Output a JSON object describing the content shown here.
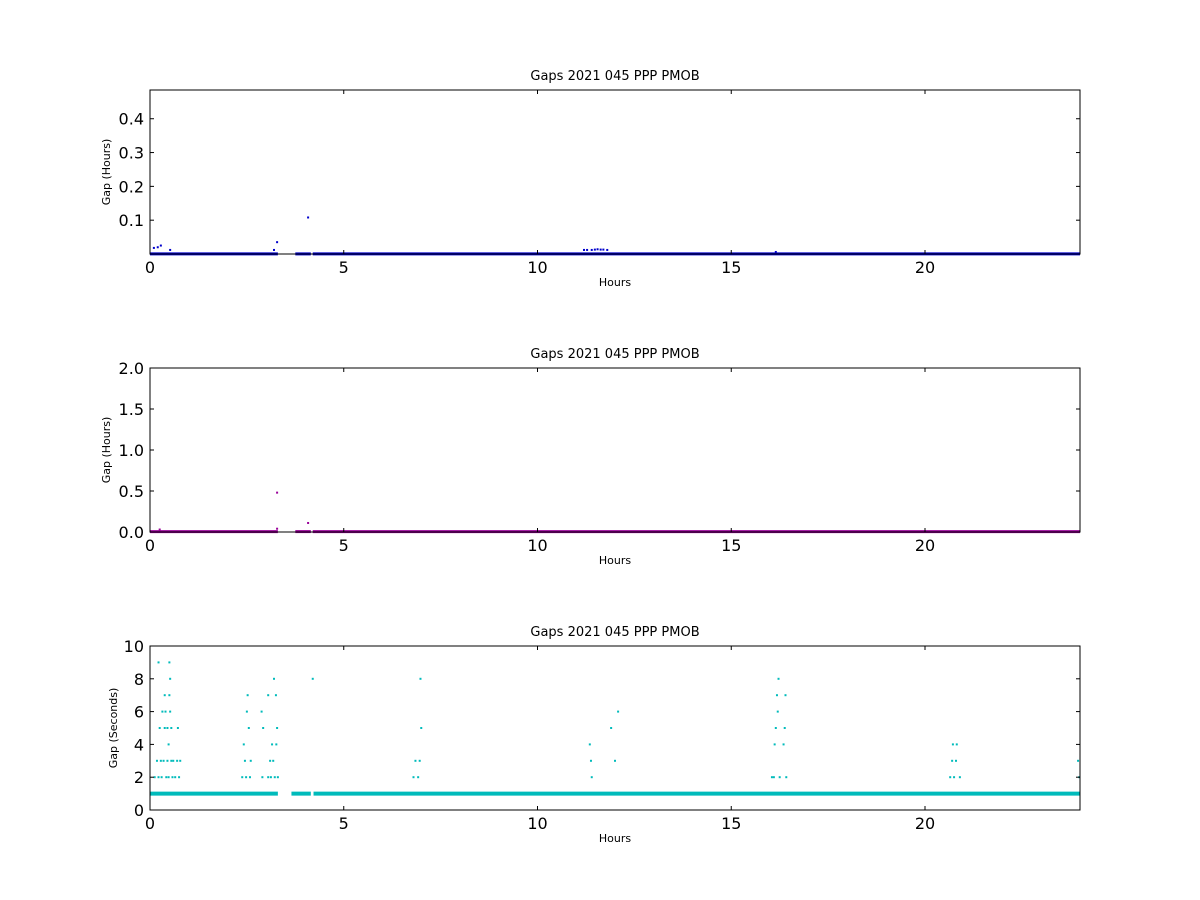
{
  "chart_data": [
    {
      "type": "scatter",
      "title": "Gaps 2021 045 PPP  PMOB",
      "xlabel": "Hours",
      "ylabel": "Gap (Hours)",
      "xlim": [
        0,
        24
      ],
      "ylim": [
        0,
        0.485
      ],
      "xticks": [
        0,
        5,
        10,
        15,
        20
      ],
      "xtick_labels": [
        "0",
        "5",
        "10",
        "15",
        "20"
      ],
      "yticks": [
        0.1,
        0.2,
        0.3,
        0.4
      ],
      "ytick_labels": [
        "0.1",
        "0.2",
        "0.3",
        "0.4"
      ],
      "grid": false,
      "color": "#0000cc",
      "baseline": {
        "value": 0.0003,
        "segments": [
          [
            0,
            3.3
          ],
          [
            3.75,
            4.15
          ],
          [
            4.2,
            24
          ]
        ]
      },
      "points": [
        [
          0.1,
          0.018
        ],
        [
          0.2,
          0.02
        ],
        [
          0.28,
          0.025
        ],
        [
          0.52,
          0.012
        ],
        [
          3.2,
          0.012
        ],
        [
          3.28,
          0.035
        ],
        [
          4.08,
          0.108
        ],
        [
          11.2,
          0.012
        ],
        [
          11.28,
          0.012
        ],
        [
          11.4,
          0.012
        ],
        [
          11.48,
          0.013
        ],
        [
          11.55,
          0.014
        ],
        [
          11.63,
          0.013
        ],
        [
          11.7,
          0.013
        ],
        [
          11.8,
          0.012
        ],
        [
          16.15,
          0.006
        ]
      ]
    },
    {
      "type": "scatter",
      "title": "Gaps 2021 045 PPP  PMOB",
      "xlabel": "Hours",
      "ylabel": "Gap (Hours)",
      "xlim": [
        0,
        24
      ],
      "ylim": [
        0,
        2.0
      ],
      "xticks": [
        0,
        5,
        10,
        15,
        20
      ],
      "xtick_labels": [
        "0",
        "5",
        "10",
        "15",
        "20"
      ],
      "yticks": [
        0.0,
        0.5,
        1.0,
        1.5,
        2.0
      ],
      "ytick_labels": [
        "0.0",
        "0.5",
        "1.0",
        "1.5",
        "2.0"
      ],
      "grid": false,
      "color": "#990099",
      "baseline": {
        "value": 0.005,
        "segments": [
          [
            0,
            3.3
          ],
          [
            3.75,
            4.15
          ],
          [
            4.2,
            24
          ]
        ]
      },
      "points": [
        [
          0.25,
          0.03
        ],
        [
          3.28,
          0.48
        ],
        [
          3.28,
          0.04
        ],
        [
          4.08,
          0.11
        ]
      ]
    },
    {
      "type": "scatter",
      "title": "Gaps 2021 045 PPP  PMOB",
      "xlabel": "Hours",
      "ylabel": "Gap (Seconds)",
      "xlim": [
        0,
        24
      ],
      "ylim": [
        0,
        10
      ],
      "xticks": [
        0,
        5,
        10,
        15,
        20
      ],
      "xtick_labels": [
        "0",
        "5",
        "10",
        "15",
        "20"
      ],
      "yticks": [
        0,
        2,
        4,
        6,
        8,
        10
      ],
      "ytick_labels": [
        "0",
        "2",
        "4",
        "6",
        "8",
        "10"
      ],
      "grid": false,
      "color": "#00bbbb",
      "baseline": {
        "value": 1,
        "segments": [
          [
            0,
            3.3
          ],
          [
            3.65,
            4.15
          ],
          [
            4.22,
            24
          ]
        ]
      },
      "points": [
        [
          0.12,
          2
        ],
        [
          0.18,
          3
        ],
        [
          0.22,
          2
        ],
        [
          0.22,
          9
        ],
        [
          0.25,
          5
        ],
        [
          0.28,
          3
        ],
        [
          0.3,
          2
        ],
        [
          0.32,
          6
        ],
        [
          0.35,
          3
        ],
        [
          0.38,
          5
        ],
        [
          0.38,
          7
        ],
        [
          0.4,
          6
        ],
        [
          0.42,
          2
        ],
        [
          0.45,
          3
        ],
        [
          0.45,
          5
        ],
        [
          0.48,
          2
        ],
        [
          0.48,
          4
        ],
        [
          0.5,
          7
        ],
        [
          0.5,
          9
        ],
        [
          0.52,
          6
        ],
        [
          0.52,
          8
        ],
        [
          0.55,
          3
        ],
        [
          0.55,
          5
        ],
        [
          0.58,
          2
        ],
        [
          0.6,
          3
        ],
        [
          0.65,
          2
        ],
        [
          0.7,
          3
        ],
        [
          0.72,
          5
        ],
        [
          0.75,
          2
        ],
        [
          0.78,
          3
        ],
        [
          2.38,
          2
        ],
        [
          2.42,
          4
        ],
        [
          2.45,
          3
        ],
        [
          2.48,
          2
        ],
        [
          2.5,
          6
        ],
        [
          2.52,
          7
        ],
        [
          2.55,
          5
        ],
        [
          2.58,
          2
        ],
        [
          2.6,
          3
        ],
        [
          2.88,
          6
        ],
        [
          2.9,
          2
        ],
        [
          2.92,
          5
        ],
        [
          3.05,
          2
        ],
        [
          3.05,
          7
        ],
        [
          3.1,
          3
        ],
        [
          3.12,
          2
        ],
        [
          3.15,
          4
        ],
        [
          3.18,
          3
        ],
        [
          3.2,
          8
        ],
        [
          3.22,
          2
        ],
        [
          3.25,
          7
        ],
        [
          3.26,
          4
        ],
        [
          3.28,
          5
        ],
        [
          3.3,
          2
        ],
        [
          4.2,
          8
        ],
        [
          6.8,
          2
        ],
        [
          6.85,
          3
        ],
        [
          6.92,
          2
        ],
        [
          6.96,
          3
        ],
        [
          6.98,
          8
        ],
        [
          7.0,
          5
        ],
        [
          11.35,
          4
        ],
        [
          11.38,
          3
        ],
        [
          11.4,
          2
        ],
        [
          11.9,
          5
        ],
        [
          12.0,
          3
        ],
        [
          12.08,
          6
        ],
        [
          16.05,
          2
        ],
        [
          16.1,
          2
        ],
        [
          16.12,
          4
        ],
        [
          16.15,
          5
        ],
        [
          16.18,
          7
        ],
        [
          16.2,
          6
        ],
        [
          16.22,
          8
        ],
        [
          16.25,
          2
        ],
        [
          16.35,
          4
        ],
        [
          16.38,
          5
        ],
        [
          16.4,
          7
        ],
        [
          16.42,
          2
        ],
        [
          20.65,
          2
        ],
        [
          20.7,
          3
        ],
        [
          20.72,
          4
        ],
        [
          20.75,
          2
        ],
        [
          20.8,
          3
        ],
        [
          20.82,
          4
        ],
        [
          20.9,
          2
        ],
        [
          23.95,
          3
        ],
        [
          23.98,
          2
        ]
      ]
    }
  ]
}
